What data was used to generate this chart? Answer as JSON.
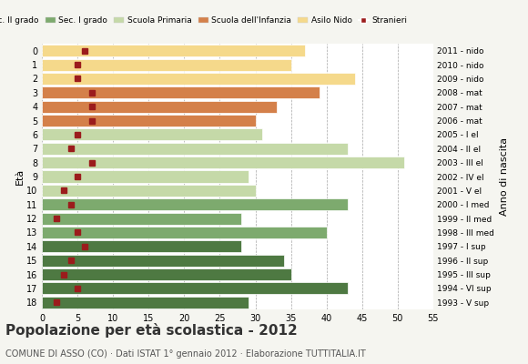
{
  "ages": [
    18,
    17,
    16,
    15,
    14,
    13,
    12,
    11,
    10,
    9,
    8,
    7,
    6,
    5,
    4,
    3,
    2,
    1,
    0
  ],
  "bar_values": [
    29,
    43,
    35,
    34,
    28,
    40,
    28,
    43,
    30,
    29,
    51,
    43,
    31,
    30,
    33,
    39,
    44,
    35,
    37
  ],
  "stranieri": [
    2,
    5,
    3,
    4,
    6,
    5,
    2,
    4,
    3,
    5,
    7,
    4,
    5,
    7,
    7,
    7,
    5,
    5,
    6
  ],
  "anno_nascita": [
    "1993 - V sup",
    "1994 - VI sup",
    "1995 - III sup",
    "1996 - II sup",
    "1997 - I sup",
    "1998 - III med",
    "1999 - II med",
    "2000 - I med",
    "2001 - V el",
    "2002 - IV el",
    "2003 - III el",
    "2004 - II el",
    "2005 - I el",
    "2006 - mat",
    "2007 - mat",
    "2008 - mat",
    "2009 - nido",
    "2010 - nido",
    "2011 - nido"
  ],
  "color_map": {
    "18": "#4e7942",
    "17": "#4e7942",
    "16": "#4e7942",
    "15": "#4e7942",
    "14": "#4e7942",
    "13": "#7daa6e",
    "12": "#7daa6e",
    "11": "#7daa6e",
    "10": "#c5d9a8",
    "9": "#c5d9a8",
    "8": "#c5d9a8",
    "7": "#c5d9a8",
    "6": "#c5d9a8",
    "5": "#d4804a",
    "4": "#d4804a",
    "3": "#d4804a",
    "2": "#f5d98b",
    "1": "#f5d98b",
    "0": "#f5d98b"
  },
  "stranieri_color": "#9b1c1c",
  "title": "Popolazione per età scolastica - 2012",
  "subtitle": "COMUNE DI ASSO (CO) · Dati ISTAT 1° gennaio 2012 · Elaborazione TUTTITALIA.IT",
  "xlim": [
    0,
    55
  ],
  "xticks": [
    0,
    5,
    10,
    15,
    20,
    25,
    30,
    35,
    40,
    45,
    50,
    55
  ],
  "legend_labels": [
    "Sec. II grado",
    "Sec. I grado",
    "Scuola Primaria",
    "Scuola dell'Infanzia",
    "Asilo Nido",
    "Stranieri"
  ],
  "legend_colors": [
    "#4e7942",
    "#7daa6e",
    "#c5d9a8",
    "#d4804a",
    "#f5d98b",
    "#9b1c1c"
  ],
  "bg_color": "#f5f5f0",
  "plot_bg": "#ffffff"
}
